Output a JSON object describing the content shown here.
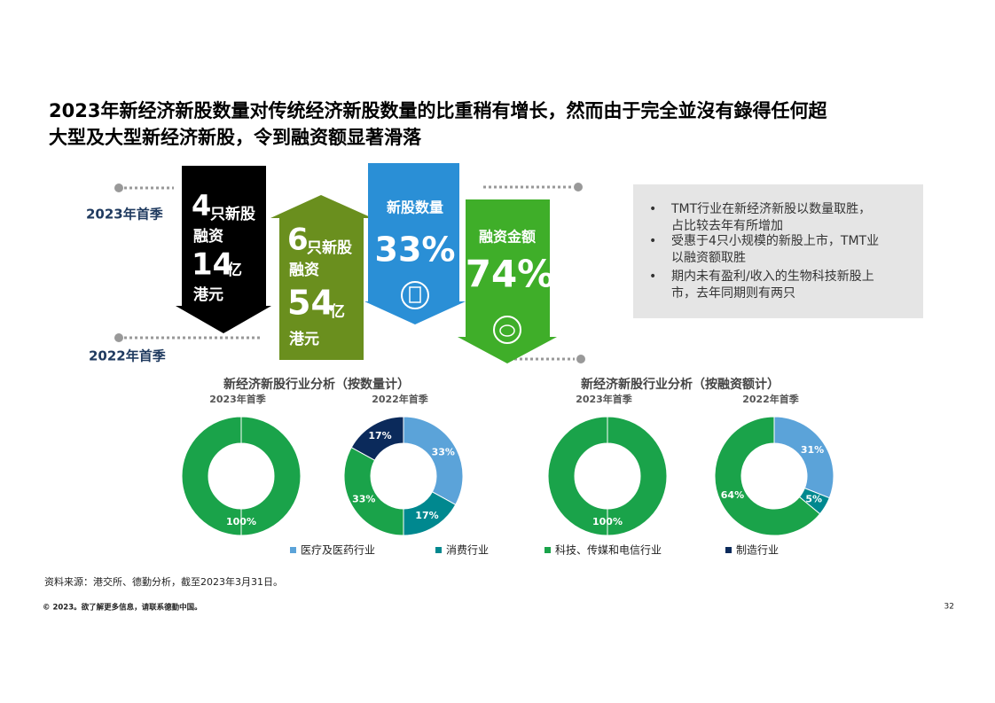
{
  "title": [
    "2023年新经济新股数量对传统经济新股数量的比重稍有增长，然而由于完全並沒有錄得任何超",
    "大型及大型新经济新股，令到融资额显著滑落"
  ],
  "timeline": {
    "current": "2023年首季",
    "previous": "2022年首季"
  },
  "arrows": [
    {
      "count": 4,
      "count_unit": "只新股",
      "label": "融资",
      "amount": 14,
      "amount_unit": "亿",
      "currency": "港元"
    },
    {
      "count": 6,
      "count_unit": "只新股",
      "label": "融资",
      "amount": 54,
      "amount_unit": "亿",
      "currency": "港元"
    }
  ],
  "highlights": [
    {
      "label": "新股数量",
      "value": "33%"
    },
    {
      "label": "融资金额",
      "value": "74%"
    }
  ],
  "notes": [
    [
      "TMT行业在新经济新股以数量取胜，",
      "占比较去年有所增加"
    ],
    [
      "受惠于4只小规模的新股上市，TMT业",
      "以融资额取胜"
    ],
    [
      "期内未有盈利/收入的生物科技新股上",
      "市，去年同期则有两只"
    ]
  ],
  "chart_groups": [
    "新经济新股行业分析（按数量计）",
    "新经济新股行业分析（按融资额计）"
  ],
  "chart_data": [
    {
      "type": "pie",
      "title": "2023年首季",
      "values": [
        100
      ],
      "value_labels": [
        "100%"
      ],
      "colors": [
        "#1aa34a"
      ]
    },
    {
      "type": "pie",
      "title": "2022年首季",
      "values": [
        33,
        17,
        33,
        17
      ],
      "value_labels": [
        "33%",
        "17%",
        "33%",
        "17%"
      ],
      "colors": [
        "#5ba3d9",
        "#00888f",
        "#1aa34a",
        "#0b2a5b"
      ]
    },
    {
      "type": "pie",
      "title": "2023年首季",
      "values": [
        100
      ],
      "value_labels": [
        "100%"
      ],
      "colors": [
        "#1aa34a"
      ]
    },
    {
      "type": "pie",
      "title": "2022年首季",
      "values": [
        31,
        5,
        64
      ],
      "value_labels": [
        "31%",
        "5%",
        "64%"
      ],
      "colors": [
        "#5ba3d9",
        "#00888f",
        "#1aa34a"
      ]
    }
  ],
  "legend": {
    "names": [
      "医疗及医药行业",
      "消费行业",
      "科技、传媒和电信行业",
      "制造行业"
    ],
    "colors": [
      "#5ba3d9",
      "#00888f",
      "#1aa34a",
      "#0b2a5b"
    ]
  },
  "source": "资料来源：港交所、德勤分析，截至2023年3月31日。",
  "footer": "© 2023。欲了解更多信息，请联系德勤中国。",
  "page_number": "32"
}
